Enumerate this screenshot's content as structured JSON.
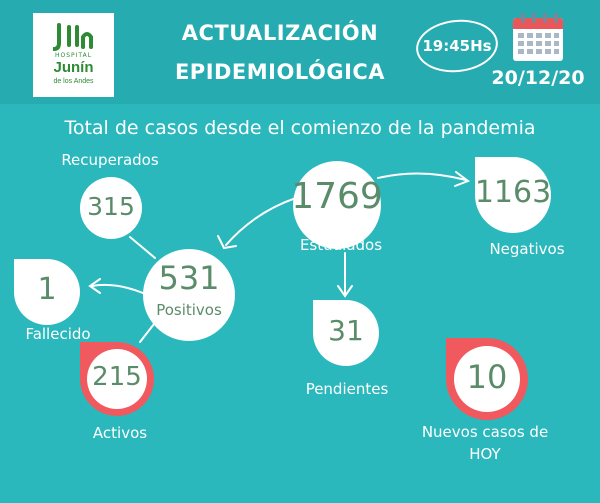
{
  "header": {
    "logo": {
      "hospital": "HOSPITAL",
      "name": "Junín",
      "subtitle": "de los Andes"
    },
    "title_line1": "ACTUALIZACIÓN",
    "title_line2": "EPIDEMIOLÓGICA",
    "time": "19:45Hs",
    "date": "20/12/20",
    "calendar_icon": "calendar-icon"
  },
  "subtitle": "Total de casos desde el comienzo de la pandemia",
  "stats": {
    "estudiados": {
      "value": "1769",
      "label": "Estudiados"
    },
    "negativos": {
      "value": "1163",
      "label": "Negativos"
    },
    "positivos": {
      "value": "531",
      "label": "Positivos"
    },
    "recuperados": {
      "value": "315",
      "label": "Recuperados"
    },
    "fallecido": {
      "value": "1",
      "label": "Fallecido"
    },
    "activos": {
      "value": "215",
      "label": "Activos"
    },
    "pendientes": {
      "value": "31",
      "label": "Pendientes"
    },
    "nuevos": {
      "value": "10",
      "label_line1": "Nuevos casos de",
      "label_line2": "HOY"
    }
  },
  "colors": {
    "background": "#2bb8bc",
    "header": "#25abb0",
    "number": "#5a8c6a",
    "alert": "#f0595e",
    "logo_green": "#2e8a35"
  }
}
